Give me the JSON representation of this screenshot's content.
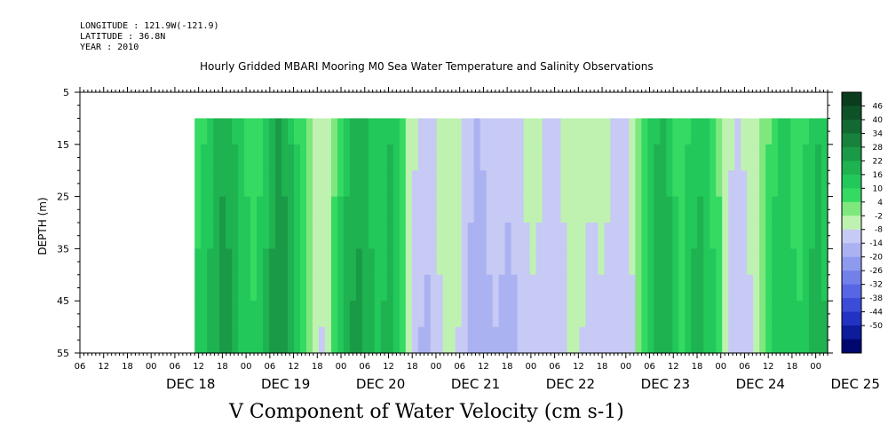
{
  "header": {
    "longitude": "LONGITUDE : 121.9W(-121.9)",
    "latitude": "LATITUDE : 36.8N",
    "year": "YEAR : 2010"
  },
  "chart_data": {
    "type": "heatmap",
    "title": "Hourly Gridded MBARI Mooring M0 Sea Water Temperature and Salinity Observations",
    "xlabel": "V Component of Water Velocity (cm s-1)",
    "ylabel": "DEPTH (m)",
    "ylim": [
      5,
      55
    ],
    "y_reversed": true,
    "y_ticks": [
      5,
      15,
      25,
      35,
      45,
      55
    ],
    "data_depth_range": [
      10,
      55
    ],
    "x_start": "DEC 17 06:00",
    "x_end": "DEC 25 03:00",
    "data_start": "DEC 17 11:00",
    "x_hour_ticks": [
      "06",
      "12",
      "18",
      "00",
      "06",
      "12",
      "18",
      "00",
      "06",
      "12",
      "18",
      "00",
      "06",
      "12",
      "18",
      "00",
      "06",
      "12",
      "18",
      "00",
      "06",
      "12",
      "18",
      "00",
      "06",
      "12",
      "18",
      "00",
      "06",
      "12",
      "18",
      "00"
    ],
    "x_day_labels": [
      "DEC 18",
      "DEC 19",
      "DEC 20",
      "DEC 21",
      "DEC 22",
      "DEC 23",
      "DEC 24",
      "DEC 25"
    ],
    "colorbar": {
      "levels": [
        48,
        46,
        40,
        34,
        28,
        22,
        16,
        10,
        4,
        -2,
        -8,
        -14,
        -20,
        -26,
        -32,
        -38,
        -44,
        -50
      ],
      "labels": [
        "46",
        "40",
        "34",
        "28",
        "22",
        "16",
        "10",
        "4",
        "-2",
        "-8",
        "-14",
        "-20",
        "-26",
        "-32",
        "-38",
        "-44",
        "-50"
      ],
      "colors": [
        "#0a3d1e",
        "#0e5228",
        "#126a32",
        "#16823c",
        "#1a9a46",
        "#1eb250",
        "#22c85a",
        "#35da62",
        "#7ee87e",
        "#bff2b0",
        "#c6caf4",
        "#aab2f2",
        "#8e9aee",
        "#7280ea",
        "#5666e4",
        "#3a4cd8",
        "#2232c2",
        "#0c1c9a",
        "#000870"
      ]
    },
    "column_values": [
      8,
      10,
      14,
      18,
      21,
      20,
      16,
      12,
      9,
      7,
      9,
      14,
      20,
      23,
      21,
      16,
      10,
      5,
      0,
      -3,
      -4,
      -2,
      3,
      9,
      15,
      19,
      20,
      18,
      14,
      11,
      13,
      16,
      12,
      5,
      -2,
      -7,
      -10,
      -11,
      -8,
      -5,
      -3,
      -2,
      -4,
      -8,
      -12,
      -14,
      -13,
      -11,
      -10,
      -11,
      -12,
      -11,
      -9,
      -6,
      -5,
      -6,
      -8,
      -9,
      -8,
      -6,
      -3,
      -2,
      -4,
      -6,
      -6,
      -5,
      -6,
      -8,
      -9,
      -8,
      -5,
      0,
      6,
      12,
      16,
      18,
      15,
      9,
      6,
      10,
      14,
      15,
      12,
      8,
      3,
      -3,
      -7,
      -8,
      -7,
      -5,
      -3,
      0,
      4,
      9,
      12,
      11,
      8,
      7,
      10,
      14,
      16,
      13
    ],
    "depth_gradient": -0.4
  }
}
